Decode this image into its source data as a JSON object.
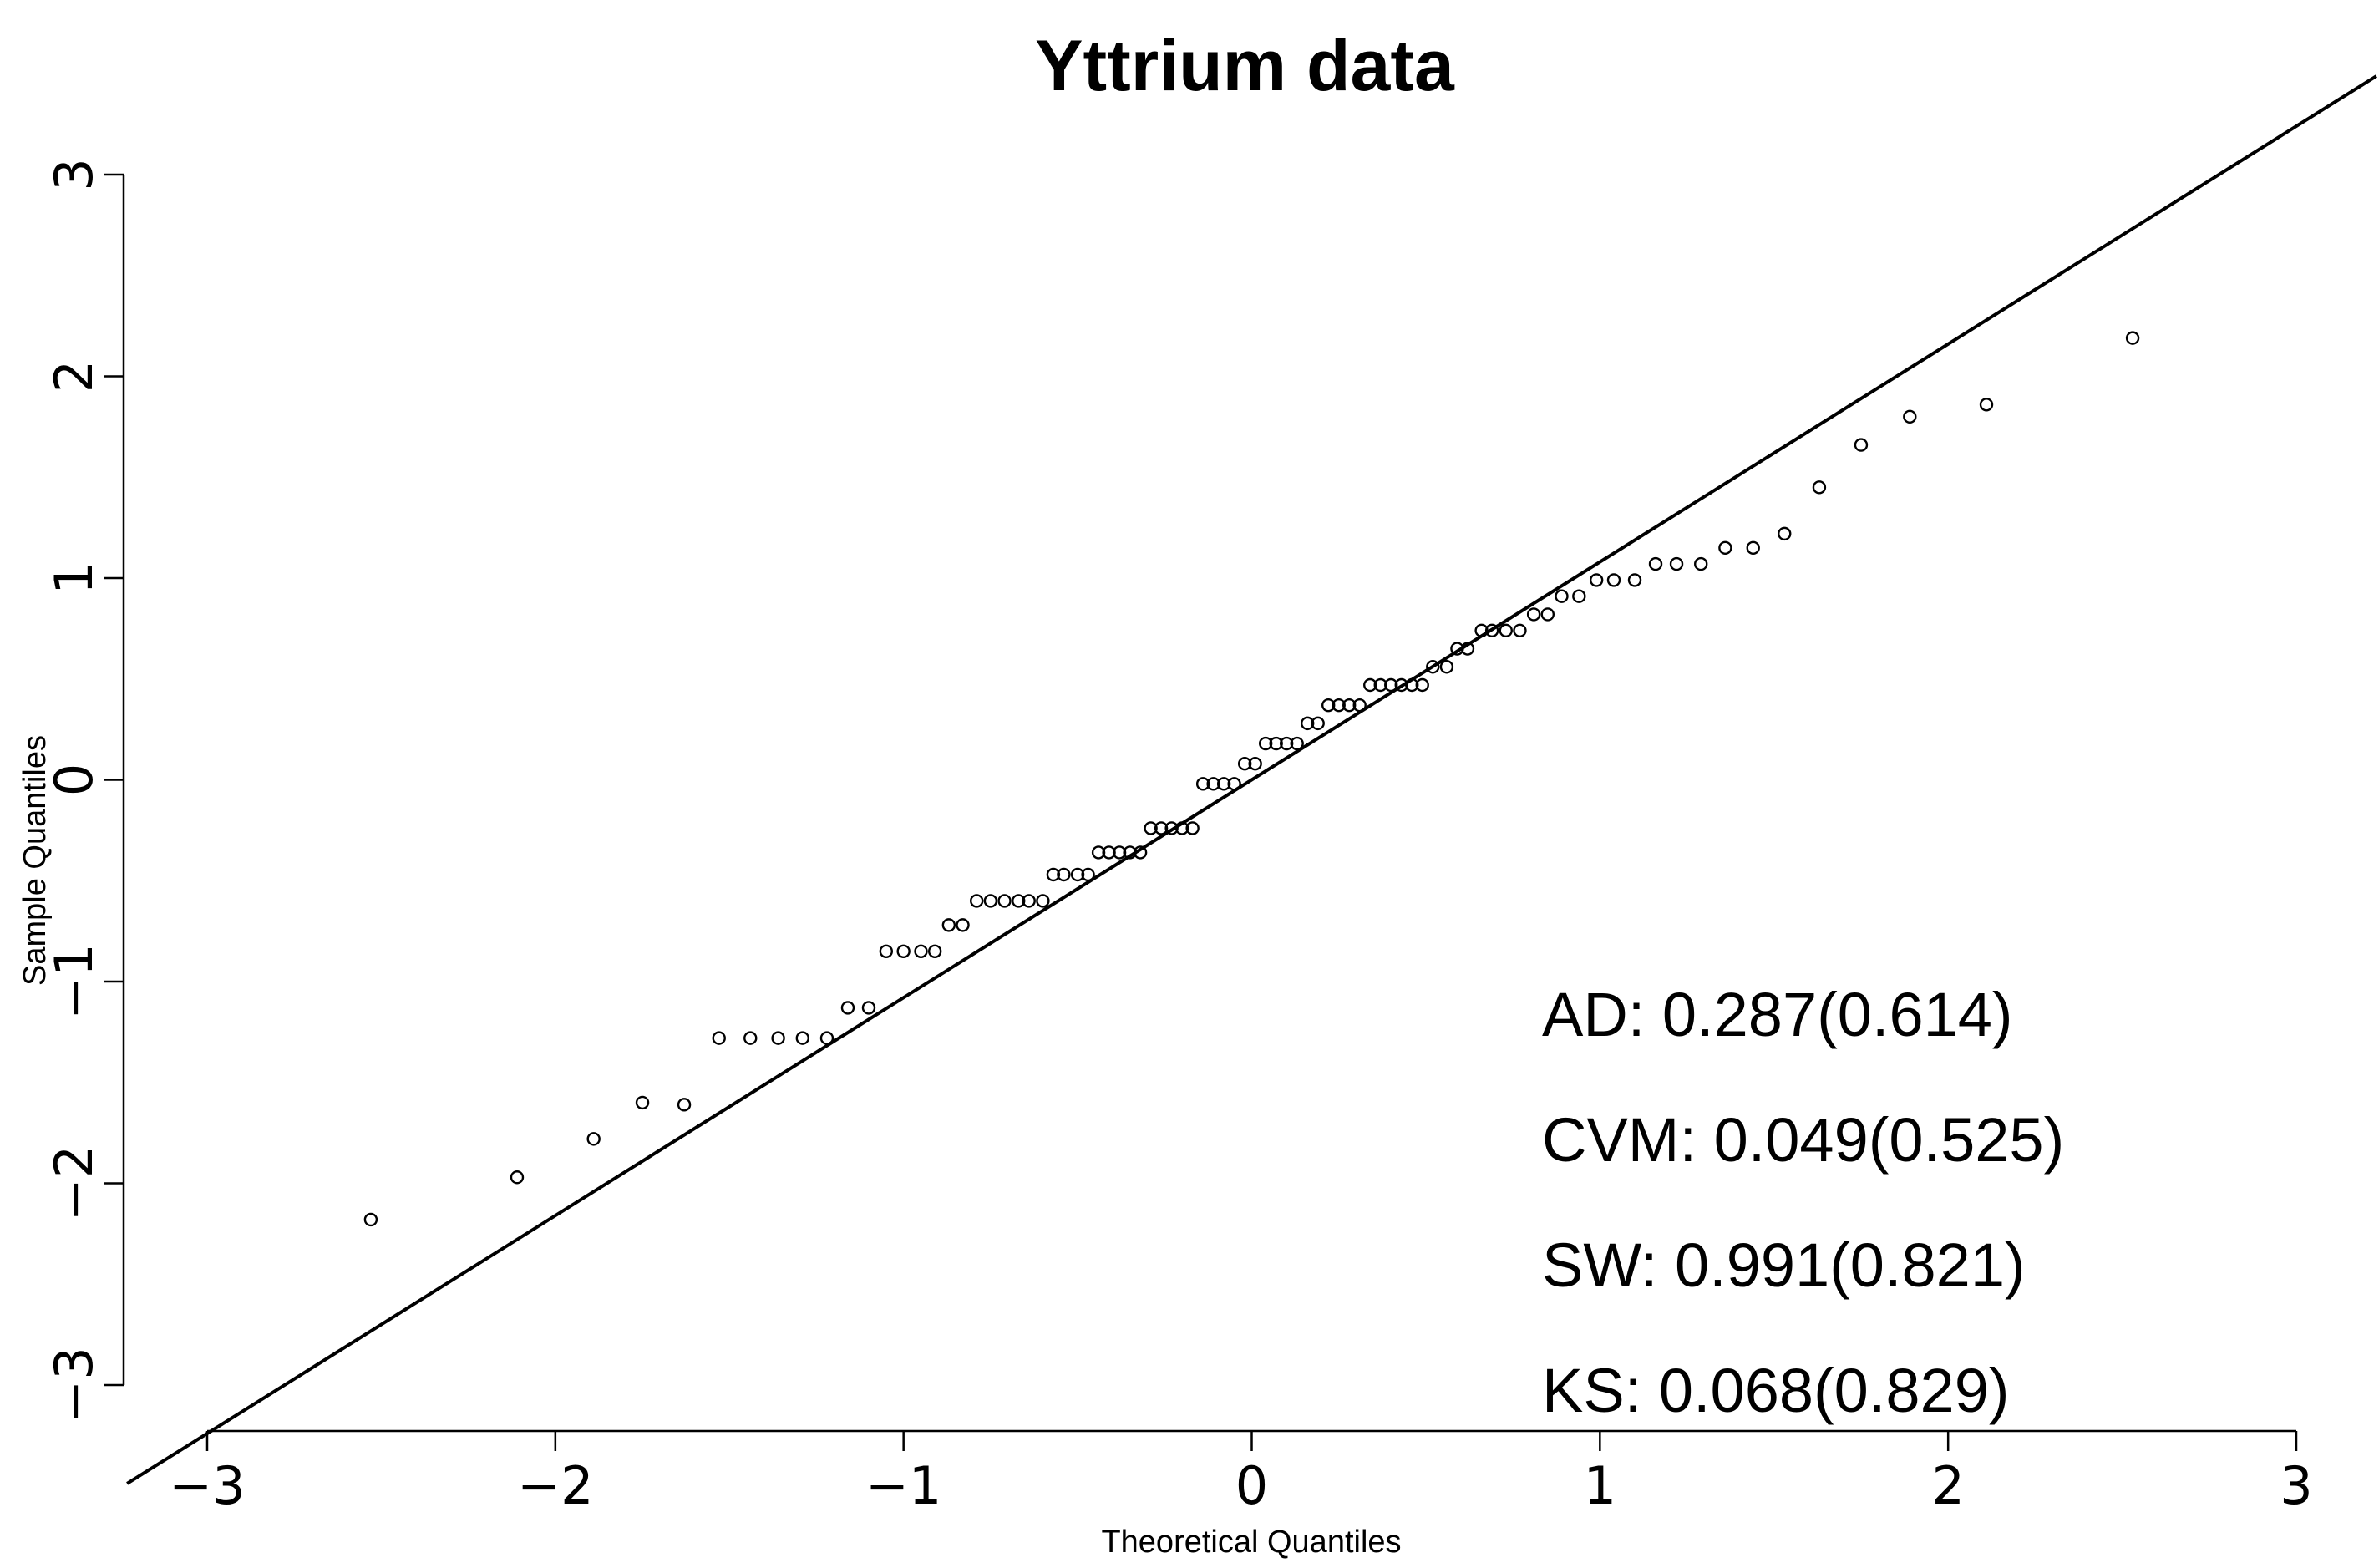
{
  "chart_data": {
    "type": "scatter",
    "title": "Yttrium data",
    "xlabel": "Theoretical Quantiles",
    "ylabel": "Sample Quantiles",
    "xlim": [
      -3,
      3
    ],
    "ylim": [
      -3,
      3
    ],
    "xticks": [
      "−3",
      "−2",
      "−1",
      "0",
      "1",
      "2",
      "3"
    ],
    "yticks": [
      "−3",
      "−2",
      "−1",
      "0",
      "1",
      "2",
      "3"
    ],
    "grid": false,
    "legend": null,
    "marker": "open-circle",
    "colors": {
      "points": "#000000",
      "line": "#000000"
    },
    "reference_line": {
      "intercept": 0.0,
      "slope": 1.08
    },
    "annotations": [
      {
        "label": "AD:",
        "value": "0.287(0.614)"
      },
      {
        "label": "CVM:",
        "value": "0.049(0.525)"
      },
      {
        "label": "SW:",
        "value": "0.991(0.821)"
      },
      {
        "label": "KS:",
        "value": "0.068(0.829)"
      }
    ],
    "points": [
      [
        -2.53,
        -2.18
      ],
      [
        -2.11,
        -1.97
      ],
      [
        -1.89,
        -1.78
      ],
      [
        -1.75,
        -1.6
      ],
      [
        -1.63,
        -1.61
      ],
      [
        -1.53,
        -1.28
      ],
      [
        -1.44,
        -1.28
      ],
      [
        -1.36,
        -1.28
      ],
      [
        -1.29,
        -1.28
      ],
      [
        -1.22,
        -1.28
      ],
      [
        -1.16,
        -1.13
      ],
      [
        -1.1,
        -1.13
      ],
      [
        -1.05,
        -0.85
      ],
      [
        -1.0,
        -0.85
      ],
      [
        -0.95,
        -0.85
      ],
      [
        -0.91,
        -0.85
      ],
      [
        -0.87,
        -0.72
      ],
      [
        -0.83,
        -0.72
      ],
      [
        -0.79,
        -0.6
      ],
      [
        -0.75,
        -0.6
      ],
      [
        -0.71,
        -0.6
      ],
      [
        -0.67,
        -0.6
      ],
      [
        -0.64,
        -0.6
      ],
      [
        -0.6,
        -0.6
      ],
      [
        -0.57,
        -0.47
      ],
      [
        -0.54,
        -0.47
      ],
      [
        -0.5,
        -0.47
      ],
      [
        -0.47,
        -0.47
      ],
      [
        -0.44,
        -0.36
      ],
      [
        -0.41,
        -0.36
      ],
      [
        -0.38,
        -0.36
      ],
      [
        -0.35,
        -0.36
      ],
      [
        -0.32,
        -0.36
      ],
      [
        -0.29,
        -0.24
      ],
      [
        -0.26,
        -0.24
      ],
      [
        -0.23,
        -0.24
      ],
      [
        -0.2,
        -0.24
      ],
      [
        -0.17,
        -0.24
      ],
      [
        -0.14,
        -0.02
      ],
      [
        -0.11,
        -0.02
      ],
      [
        -0.08,
        -0.02
      ],
      [
        -0.05,
        -0.02
      ],
      [
        -0.02,
        0.08
      ],
      [
        0.01,
        0.08
      ],
      [
        0.04,
        0.18
      ],
      [
        0.07,
        0.18
      ],
      [
        0.1,
        0.18
      ],
      [
        0.13,
        0.18
      ],
      [
        0.16,
        0.28
      ],
      [
        0.19,
        0.28
      ],
      [
        0.22,
        0.37
      ],
      [
        0.25,
        0.37
      ],
      [
        0.28,
        0.37
      ],
      [
        0.31,
        0.37
      ],
      [
        0.34,
        0.47
      ],
      [
        0.37,
        0.47
      ],
      [
        0.4,
        0.47
      ],
      [
        0.43,
        0.47
      ],
      [
        0.46,
        0.47
      ],
      [
        0.49,
        0.47
      ],
      [
        0.52,
        0.56
      ],
      [
        0.56,
        0.56
      ],
      [
        0.59,
        0.65
      ],
      [
        0.62,
        0.65
      ],
      [
        0.66,
        0.74
      ],
      [
        0.69,
        0.74
      ],
      [
        0.73,
        0.74
      ],
      [
        0.77,
        0.74
      ],
      [
        0.81,
        0.82
      ],
      [
        0.85,
        0.82
      ],
      [
        0.89,
        0.91
      ],
      [
        0.94,
        0.91
      ],
      [
        0.99,
        0.99
      ],
      [
        1.04,
        0.99
      ],
      [
        1.1,
        0.99
      ],
      [
        1.16,
        1.07
      ],
      [
        1.22,
        1.07
      ],
      [
        1.29,
        1.07
      ],
      [
        1.36,
        1.15
      ],
      [
        1.44,
        1.15
      ],
      [
        1.53,
        1.22
      ],
      [
        1.63,
        1.45
      ],
      [
        1.75,
        1.66
      ],
      [
        1.89,
        1.8
      ],
      [
        2.11,
        1.86
      ],
      [
        2.53,
        2.19
      ]
    ]
  }
}
